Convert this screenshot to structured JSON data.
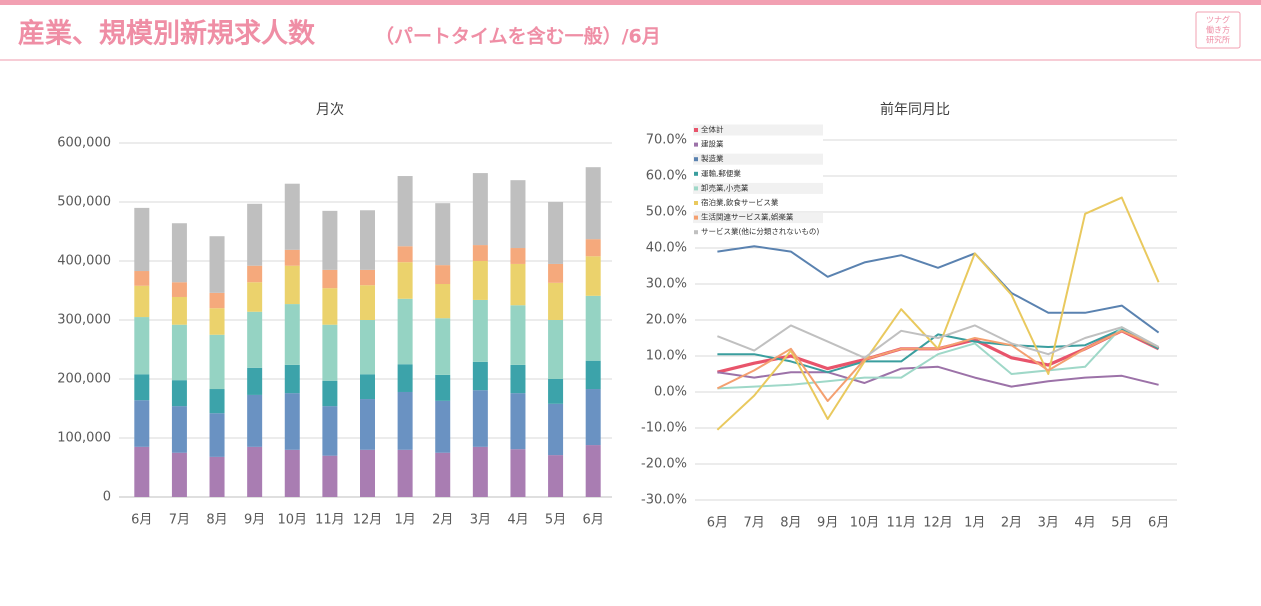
{
  "header": {
    "title": "産業、規模別新規求人数",
    "subtitle": "（パートタイムを含む一般）/6月",
    "logo": [
      "ツナグ",
      "働き方",
      "研究所"
    ]
  },
  "chart_data": [
    {
      "type": "bar",
      "stacked": true,
      "title": "月次",
      "categories": [
        "6月",
        "7月",
        "8月",
        "9月",
        "10月",
        "11月",
        "12月",
        "1月",
        "2月",
        "3月",
        "4月",
        "5月",
        "6月"
      ],
      "series": [
        {
          "color": "#a97db2",
          "values": [
            85000,
            75000,
            68000,
            85000,
            80000,
            70000,
            80000,
            80000,
            75000,
            85000,
            81000,
            71000,
            88000
          ]
        },
        {
          "color": "#6a92c2",
          "values": [
            79000,
            79000,
            74000,
            88000,
            96000,
            84000,
            86000,
            98000,
            88000,
            96000,
            95000,
            87000,
            95000
          ]
        },
        {
          "color": "#3ca3aa",
          "values": [
            44000,
            44000,
            41000,
            46000,
            48000,
            43000,
            42000,
            47000,
            44000,
            48000,
            48000,
            42000,
            48000
          ]
        },
        {
          "color": "#95d3c3",
          "values": [
            97000,
            94000,
            92000,
            95000,
            103000,
            95000,
            92000,
            111000,
            96000,
            105000,
            101000,
            100000,
            110000
          ]
        },
        {
          "color": "#ebd26c",
          "values": [
            53000,
            47000,
            45000,
            50000,
            65000,
            62000,
            59000,
            62000,
            58000,
            66000,
            70000,
            63000,
            67000
          ]
        },
        {
          "color": "#f5a97c",
          "values": [
            25000,
            25000,
            26000,
            28000,
            27000,
            31000,
            26000,
            27000,
            32000,
            27000,
            27000,
            32000,
            29000
          ]
        },
        {
          "color": "#bfbfbf",
          "values": [
            107000,
            100000,
            96000,
            105000,
            112000,
            100000,
            101000,
            119000,
            105000,
            122000,
            115000,
            105000,
            122000
          ]
        }
      ],
      "ylim": [
        0,
        600000
      ],
      "yticks": [
        0,
        {
          "value": 100000,
          "label": "100,000"
        },
        {
          "value": 200000,
          "label": "200,000"
        },
        {
          "value": 300000,
          "label": "300,000"
        },
        {
          "value": 400000,
          "label": "400,000"
        },
        {
          "value": 500000,
          "label": "500,000"
        },
        {
          "value": 600000,
          "label": "600,000"
        }
      ],
      "grid": true
    },
    {
      "type": "line",
      "title": "前年同月比",
      "categories": [
        "6月",
        "7月",
        "8月",
        "9月",
        "10月",
        "11月",
        "12月",
        "1月",
        "2月",
        "3月",
        "4月",
        "5月",
        "6月"
      ],
      "series": [
        {
          "name": "全体計",
          "color": "#e8546b",
          "values": [
            5.5,
            8,
            10,
            6.5,
            9,
            12,
            12,
            14.5,
            9.5,
            7.5,
            12,
            17,
            12
          ]
        },
        {
          "name": "建設業",
          "color": "#9c72a8",
          "values": [
            5.5,
            4,
            5.5,
            5.5,
            2.5,
            6.5,
            7,
            4,
            1.5,
            3,
            4,
            4.5,
            2
          ]
        },
        {
          "name": "製造業",
          "color": "#5a82b0",
          "values": [
            39,
            40.5,
            39,
            32,
            36,
            38,
            34.5,
            38.5,
            27.5,
            22,
            22,
            24,
            16.5
          ]
        },
        {
          "name": "運輸,郵便業",
          "color": "#3a9e9e",
          "values": [
            10.5,
            10.5,
            8.5,
            5.5,
            8.5,
            8.5,
            16,
            14,
            13,
            12.5,
            13,
            17.5,
            12
          ]
        },
        {
          "name": "卸売業,小売業",
          "color": "#9fd8c8",
          "values": [
            1,
            1.5,
            2,
            3,
            4,
            4,
            10.5,
            13.5,
            5,
            6,
            7,
            18,
            12.5
          ]
        },
        {
          "name": "宿泊業,飲食サービス業",
          "color": "#e9c95e",
          "values": [
            -10.5,
            -1,
            11.5,
            -7.5,
            8.5,
            23,
            12,
            38.5,
            27,
            5,
            49.5,
            54,
            30.5
          ]
        },
        {
          "name": "生活関連サービス業,娯楽業",
          "color": "#f4a070",
          "values": [
            1,
            6,
            12,
            -2.5,
            9,
            12,
            12,
            15,
            13,
            6,
            12,
            17,
            12.5
          ]
        },
        {
          "name": "サービス業(他に分類されないもの)",
          "color": "#c0c0c0",
          "values": [
            15.5,
            11.5,
            18.5,
            14,
            9.5,
            17,
            15,
            18.5,
            13.5,
            10.5,
            15,
            18,
            12.5
          ]
        }
      ],
      "ylim": [
        -30,
        70
      ],
      "yticks": [
        {
          "value": -30,
          "label": "-30.0%"
        },
        {
          "value": -20,
          "label": "-20.0%"
        },
        {
          "value": -10,
          "label": "-10.0%"
        },
        {
          "value": 0,
          "label": "0.0%"
        },
        {
          "value": 10,
          "label": "10.0%"
        },
        {
          "value": 20,
          "label": "20.0%"
        },
        {
          "value": 30,
          "label": "30.0%"
        },
        {
          "value": 40,
          "label": "40.0%"
        },
        {
          "value": 50,
          "label": "50.0%"
        },
        {
          "value": 60,
          "label": "60.0%"
        },
        {
          "value": 70,
          "label": "70.0%"
        }
      ],
      "grid": true,
      "legend": "top-left"
    }
  ]
}
